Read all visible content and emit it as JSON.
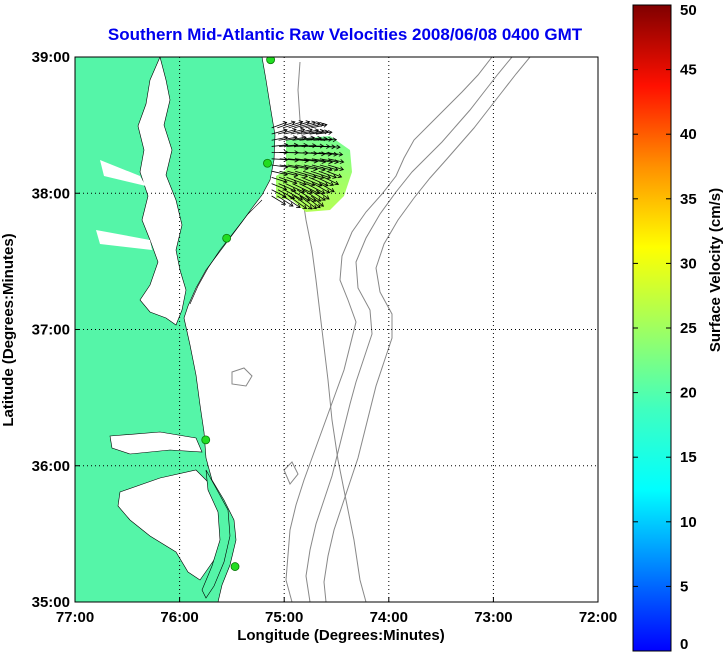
{
  "chart_data": {
    "type": "scatter",
    "title": "Southern Mid-Atlantic Raw Velocities 2008/06/08 0400 GMT",
    "xlabel": "Longitude (Degrees:Minutes)",
    "ylabel": "Latitude (Degrees:Minutes)",
    "xlim": [
      -77,
      -72
    ],
    "ylim": [
      35,
      39
    ],
    "x_ticks": [
      -77,
      -76,
      -75,
      -74,
      -73,
      -72
    ],
    "x_tick_labels": [
      "77:00",
      "76:00",
      "75:00",
      "74:00",
      "73:00",
      "72:00"
    ],
    "y_ticks": [
      35,
      36,
      37,
      38,
      39
    ],
    "y_tick_labels": [
      "35:00",
      "36:00",
      "37:00",
      "38:00",
      "39:00"
    ],
    "grid": true,
    "stations": [
      {
        "lon": -75.13,
        "lat": 38.98
      },
      {
        "lon": -75.16,
        "lat": 38.22
      },
      {
        "lon": -75.55,
        "lat": 37.67
      },
      {
        "lon": -75.75,
        "lat": 36.19
      },
      {
        "lon": -75.47,
        "lat": 35.26
      }
    ],
    "vector_field": {
      "lon_range": [
        -75.12,
        -74.58
      ],
      "lat_range": [
        37.98,
        38.48
      ],
      "direction": "east-southeast",
      "speed_range_cm_s": [
        15,
        22
      ]
    },
    "colorbar": {
      "label": "Surface Velocity (cm/s)",
      "min": 0,
      "max": 50,
      "ticks": [
        0,
        5,
        10,
        15,
        20,
        25,
        30,
        35,
        40,
        45,
        50
      ],
      "tick_labels": [
        "0",
        "5",
        "10",
        "15",
        "20",
        "25",
        "30",
        "35",
        "40",
        "45",
        "50"
      ]
    }
  },
  "colors": {
    "land": "#55f5a8",
    "title": "#0000ee",
    "station": "#22dd22",
    "contour": "#888888",
    "vector": "#000000"
  }
}
